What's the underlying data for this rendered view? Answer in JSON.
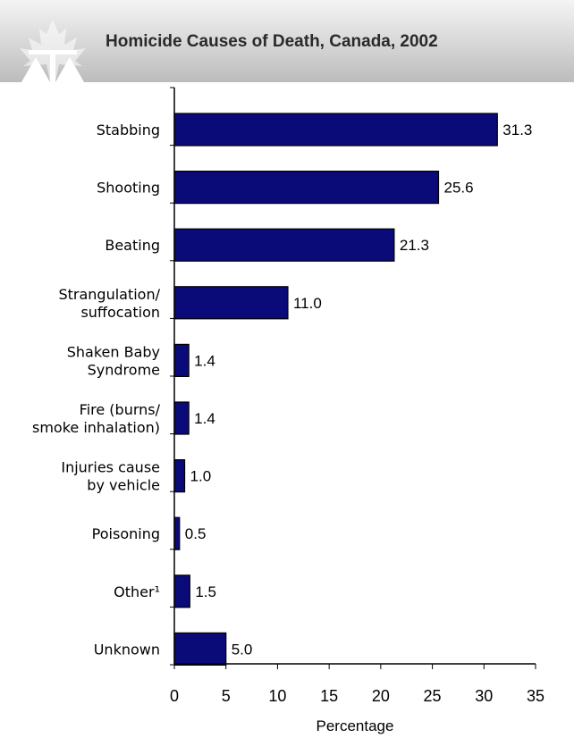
{
  "header": {
    "title": "Homicide Causes of Death, Canada, 2002"
  },
  "colors": {
    "bar_fill": "#0a0a78",
    "bar_stroke": "#000000",
    "header_gradient_top": "#f4f4f4",
    "header_gradient_bottom": "#bcbcbc",
    "logo": "#ffffff"
  },
  "icons": {
    "logo": "maple-leaf-scales-logo-icon"
  },
  "chart_data": {
    "type": "bar",
    "orientation": "horizontal",
    "title": "Homicide Causes of Death, Canada, 2002",
    "xlabel": "Percentage",
    "ylabel": "",
    "xlim": [
      0,
      35
    ],
    "xticks": [
      0,
      5,
      10,
      15,
      20,
      25,
      30,
      35
    ],
    "grid": false,
    "legend": "none",
    "categories": [
      [
        "Stabbing"
      ],
      [
        "Shooting"
      ],
      [
        "Beating"
      ],
      [
        "Strangulation/",
        "suffocation"
      ],
      [
        "Shaken Baby",
        "Syndrome"
      ],
      [
        "Fire (burns/",
        "smoke inhalation)"
      ],
      [
        "Injuries cause",
        "by vehicle"
      ],
      [
        "Poisoning"
      ],
      [
        "Other¹"
      ],
      [
        "Unknown"
      ]
    ],
    "values": [
      31.3,
      25.6,
      21.3,
      11.0,
      1.4,
      1.4,
      1.0,
      0.5,
      1.5,
      5.0
    ],
    "value_labels": [
      "31.3",
      "25.6",
      "21.3",
      "11.0",
      "1.4",
      "1.4",
      "1.0",
      "0.5",
      "1.5",
      "5.0"
    ]
  }
}
